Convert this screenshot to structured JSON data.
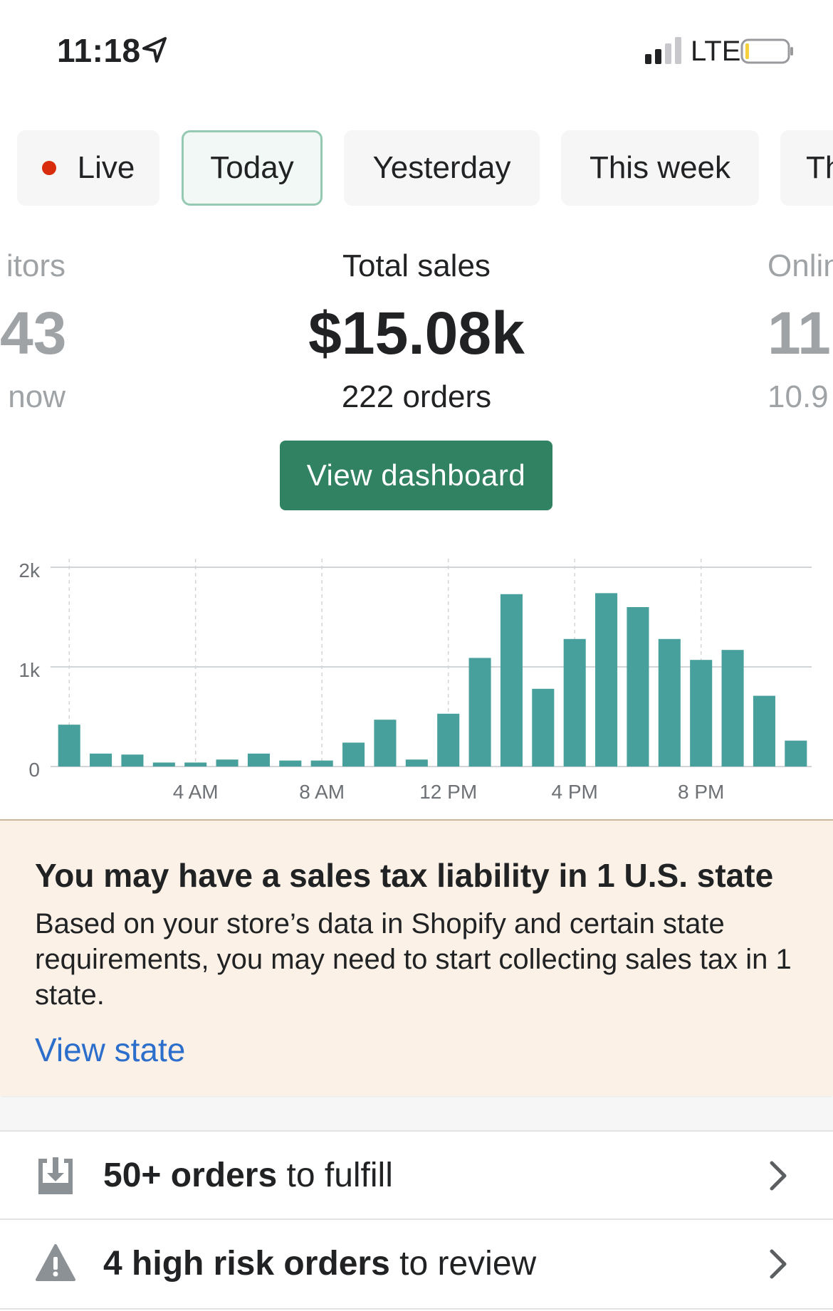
{
  "status_bar": {
    "time": "11:18",
    "network": "LTE",
    "icons": [
      "location-arrow-icon",
      "signal-icon",
      "battery-icon"
    ]
  },
  "tabs": [
    {
      "label": "Live",
      "active": false,
      "has_dot": true
    },
    {
      "label": "Today",
      "active": true
    },
    {
      "label": "Yesterday",
      "active": false
    },
    {
      "label": "This week",
      "active": false
    },
    {
      "label": "Th",
      "active": false
    }
  ],
  "metrics": {
    "left": {
      "label": "itors",
      "value": "43",
      "sub": "now"
    },
    "center": {
      "label": "Total sales",
      "value": "$15.08k",
      "sub": "222 orders"
    },
    "right": {
      "label": "Onlin",
      "value": "11.",
      "sub": "10.9"
    }
  },
  "view_dashboard_label": "View dashboard",
  "colors": {
    "accent": "#318163",
    "bar": "#47a09b",
    "live_dot": "#d82c0d",
    "link": "#2c6ecb",
    "banner_bg": "#fcf1e7"
  },
  "chart_data": {
    "type": "bar",
    "categories": [
      "12 AM",
      "1 AM",
      "2 AM",
      "3 AM",
      "4 AM",
      "5 AM",
      "6 AM",
      "7 AM",
      "8 AM",
      "9 AM",
      "10 AM",
      "11 AM",
      "12 PM",
      "1 PM",
      "2 PM",
      "3 PM",
      "4 PM",
      "5 PM",
      "6 PM",
      "7 PM",
      "8 PM",
      "9 PM",
      "10 PM",
      "11 PM"
    ],
    "values": [
      420,
      130,
      120,
      40,
      40,
      70,
      130,
      60,
      60,
      240,
      470,
      70,
      530,
      1090,
      1730,
      780,
      1280,
      1740,
      1600,
      1280,
      1070,
      1170,
      710,
      260
    ],
    "ylim": [
      0,
      2000
    ],
    "yticks": [
      {
        "value": 0,
        "label": "0"
      },
      {
        "value": 1000,
        "label": "1k"
      },
      {
        "value": 2000,
        "label": "2k"
      }
    ],
    "xticks": [
      {
        "index": 4,
        "label": "4 AM"
      },
      {
        "index": 8,
        "label": "8 AM"
      },
      {
        "index": 12,
        "label": "12 PM"
      },
      {
        "index": 16,
        "label": "4 PM"
      },
      {
        "index": 20,
        "label": "8 PM"
      }
    ],
    "title": "",
    "xlabel": "",
    "ylabel": "",
    "grid": true
  },
  "banner": {
    "title": "You may have a sales tax liability in 1 U.S. state",
    "body": "Based on your store’s data in Shopify and certain state requirements, you may need to start collecting sales tax in 1 state.",
    "link": "View state"
  },
  "rows": [
    {
      "bold": "50+ orders",
      "rest": " to fulfill",
      "icon": "fulfill-download-icon"
    },
    {
      "bold": "4 high risk orders",
      "rest": " to review",
      "icon": "warning-icon"
    }
  ]
}
